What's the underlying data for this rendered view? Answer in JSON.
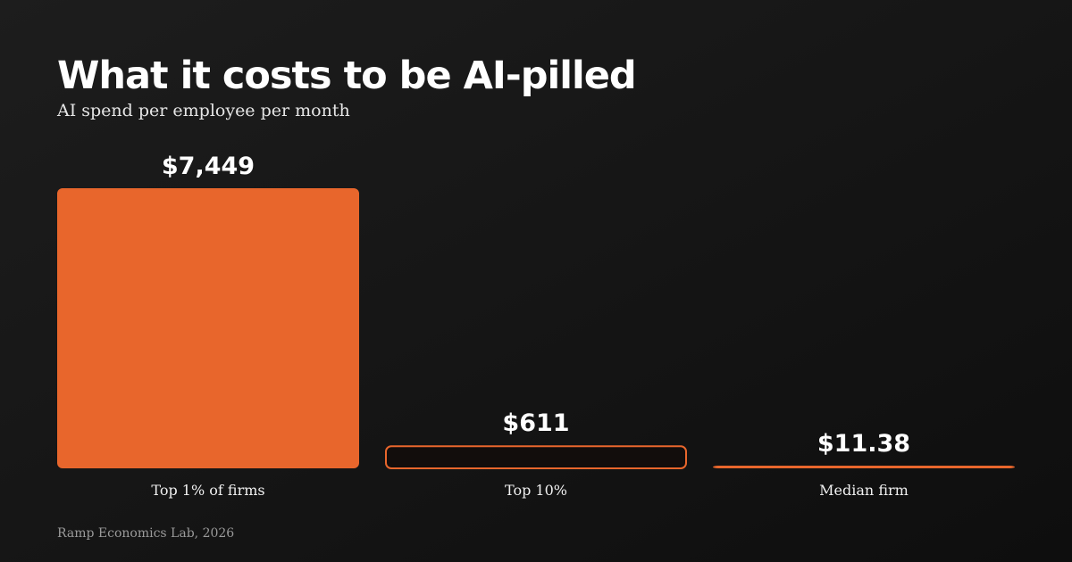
{
  "chart_data": {
    "type": "bar",
    "title": "What it costs to be AI-pilled",
    "subtitle": "AI spend per employee per month",
    "categories": [
      "Top 1% of firms",
      "Top 10%",
      "Median firm"
    ],
    "values": [
      7449,
      611,
      11.38
    ],
    "value_labels": [
      "$7,449",
      "$611",
      "$11.38"
    ],
    "color": "#e8662c",
    "source": "Ramp Economics Lab, 2026"
  }
}
